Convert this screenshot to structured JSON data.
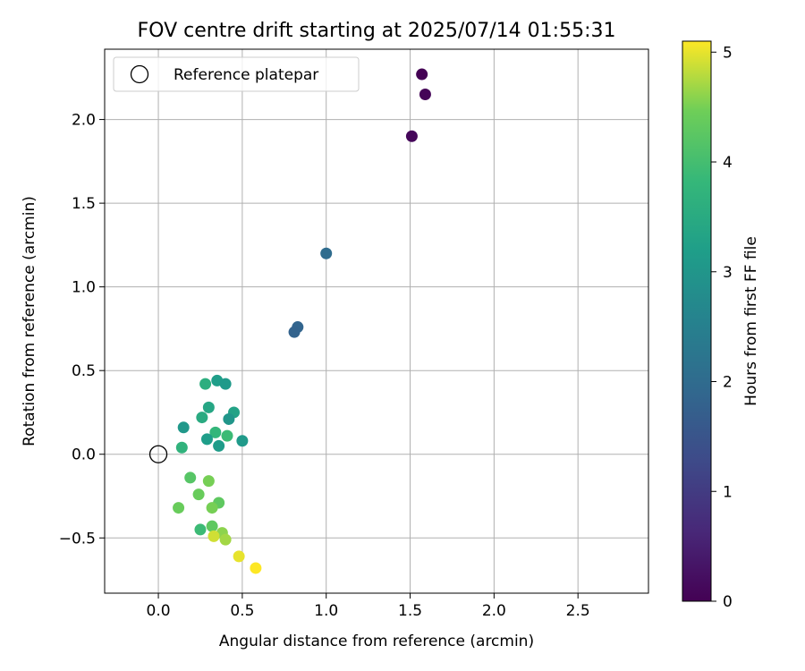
{
  "chart_data": {
    "type": "scatter",
    "title": "FOV centre drift starting at 2025/07/14 01:55:31",
    "xlabel": "Angular distance from reference (arcmin)",
    "ylabel": "Rotation from reference (arcmin)",
    "xlim": [
      -0.32,
      2.92
    ],
    "ylim": [
      -0.83,
      2.42
    ],
    "xticks": [
      0.0,
      0.5,
      1.0,
      1.5,
      2.0,
      2.5
    ],
    "xtick_labels": [
      "0.0",
      "0.5",
      "1.0",
      "1.5",
      "2.0",
      "2.5"
    ],
    "yticks": [
      -0.5,
      0.0,
      0.5,
      1.0,
      1.5,
      2.0
    ],
    "ytick_labels": [
      "−0.5",
      "0.0",
      "0.5",
      "1.0",
      "1.5",
      "2.0"
    ],
    "grid": true,
    "legend": {
      "position": "top-left",
      "entries": [
        "Reference platepar"
      ]
    },
    "reference_point": {
      "x": 0.0,
      "y": 0.0
    },
    "colorbar": {
      "label": "Hours from first FF file",
      "colormap": "viridis",
      "range": [
        0,
        5.1
      ],
      "ticks": [
        0,
        1,
        2,
        3,
        4,
        5
      ],
      "tick_labels": [
        "0",
        "1",
        "2",
        "3",
        "4",
        "5"
      ]
    },
    "points": [
      {
        "x": 1.57,
        "y": 2.27,
        "hours": 0.0
      },
      {
        "x": 1.59,
        "y": 2.15,
        "hours": 0.05
      },
      {
        "x": 1.51,
        "y": 1.9,
        "hours": 0.1
      },
      {
        "x": 1.0,
        "y": 1.2,
        "hours": 2.0
      },
      {
        "x": 0.83,
        "y": 0.76,
        "hours": 1.85
      },
      {
        "x": 0.81,
        "y": 0.73,
        "hours": 1.8
      },
      {
        "x": 0.28,
        "y": 0.42,
        "hours": 3.6
      },
      {
        "x": 0.35,
        "y": 0.44,
        "hours": 3.2
      },
      {
        "x": 0.4,
        "y": 0.42,
        "hours": 3.1
      },
      {
        "x": 0.3,
        "y": 0.28,
        "hours": 3.4
      },
      {
        "x": 0.45,
        "y": 0.25,
        "hours": 3.3
      },
      {
        "x": 0.26,
        "y": 0.22,
        "hours": 3.5
      },
      {
        "x": 0.42,
        "y": 0.21,
        "hours": 3.0
      },
      {
        "x": 0.15,
        "y": 0.16,
        "hours": 3.05
      },
      {
        "x": 0.34,
        "y": 0.13,
        "hours": 3.8
      },
      {
        "x": 0.41,
        "y": 0.11,
        "hours": 3.9
      },
      {
        "x": 0.29,
        "y": 0.09,
        "hours": 3.2
      },
      {
        "x": 0.5,
        "y": 0.08,
        "hours": 3.1
      },
      {
        "x": 0.36,
        "y": 0.05,
        "hours": 3.15
      },
      {
        "x": 0.14,
        "y": 0.04,
        "hours": 3.7
      },
      {
        "x": 0.19,
        "y": -0.14,
        "hours": 4.2
      },
      {
        "x": 0.3,
        "y": -0.16,
        "hours": 4.5
      },
      {
        "x": 0.24,
        "y": -0.24,
        "hours": 4.4
      },
      {
        "x": 0.36,
        "y": -0.29,
        "hours": 4.3
      },
      {
        "x": 0.32,
        "y": -0.32,
        "hours": 4.5
      },
      {
        "x": 0.12,
        "y": -0.32,
        "hours": 4.4
      },
      {
        "x": 0.32,
        "y": -0.43,
        "hours": 4.3
      },
      {
        "x": 0.25,
        "y": -0.45,
        "hours": 3.9
      },
      {
        "x": 0.38,
        "y": -0.47,
        "hours": 4.6
      },
      {
        "x": 0.33,
        "y": -0.49,
        "hours": 4.9
      },
      {
        "x": 0.4,
        "y": -0.51,
        "hours": 4.7
      },
      {
        "x": 0.48,
        "y": -0.61,
        "hours": 5.0
      },
      {
        "x": 0.58,
        "y": -0.68,
        "hours": 5.1
      }
    ]
  }
}
